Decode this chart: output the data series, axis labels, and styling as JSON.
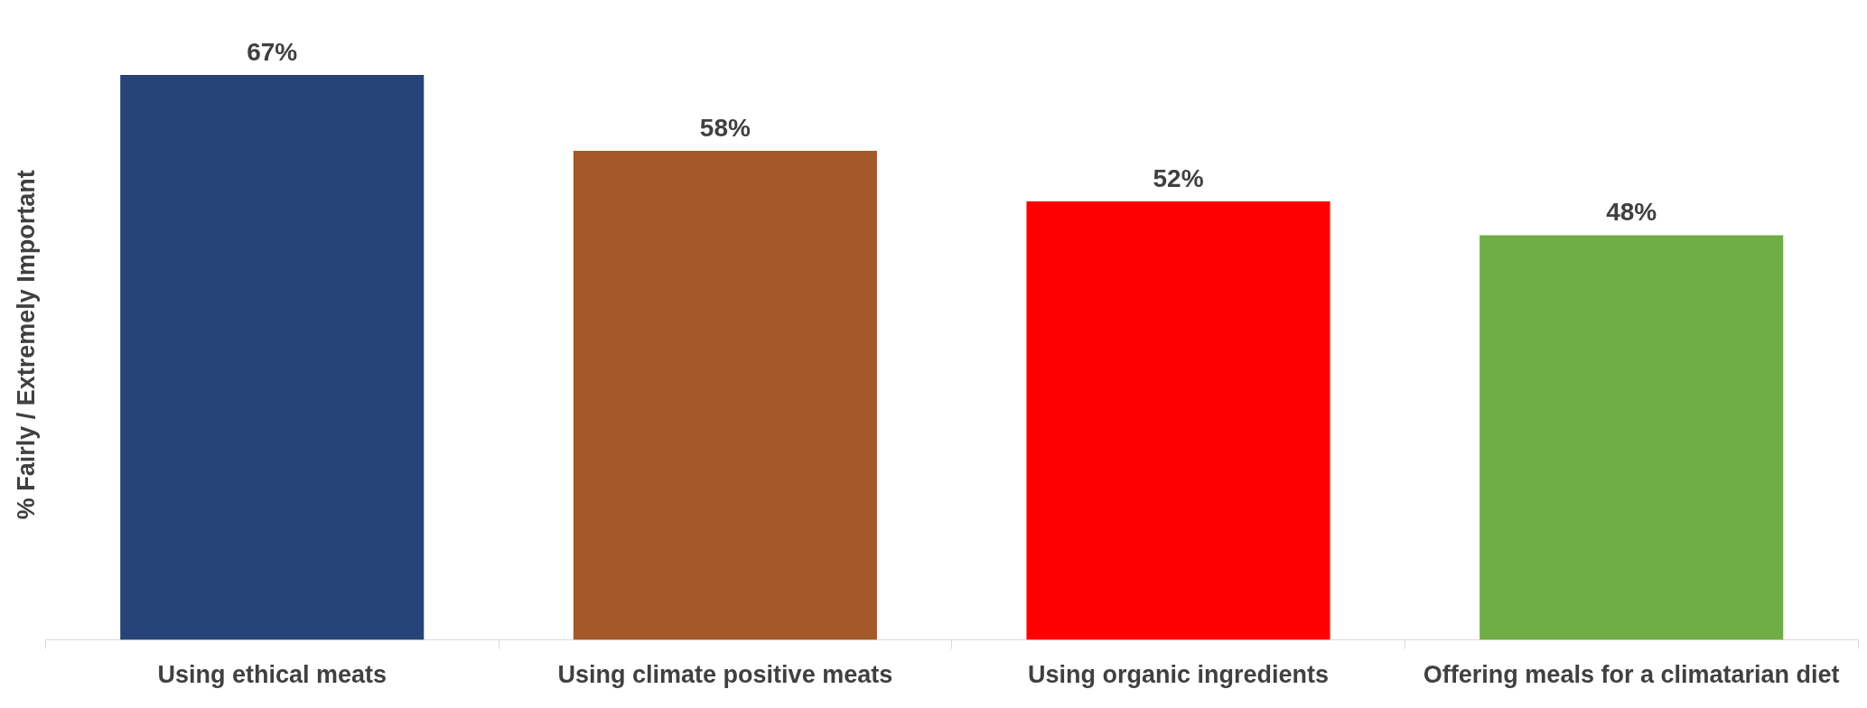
{
  "chart_data": {
    "type": "bar",
    "ylabel": "% Fairly / Extremely Important",
    "categories": [
      "Using ethical meats",
      "Using climate positive meats",
      "Using organic ingredients",
      "Offering meals for a climatarian diet"
    ],
    "values": [
      67,
      58,
      52,
      48
    ],
    "colors": [
      "#264478",
      "#a5592a",
      "#ff0000",
      "#70ad47"
    ],
    "value_labels": [
      "67%",
      "58%",
      "52%",
      "48%"
    ],
    "grid": false,
    "legend": false
  }
}
